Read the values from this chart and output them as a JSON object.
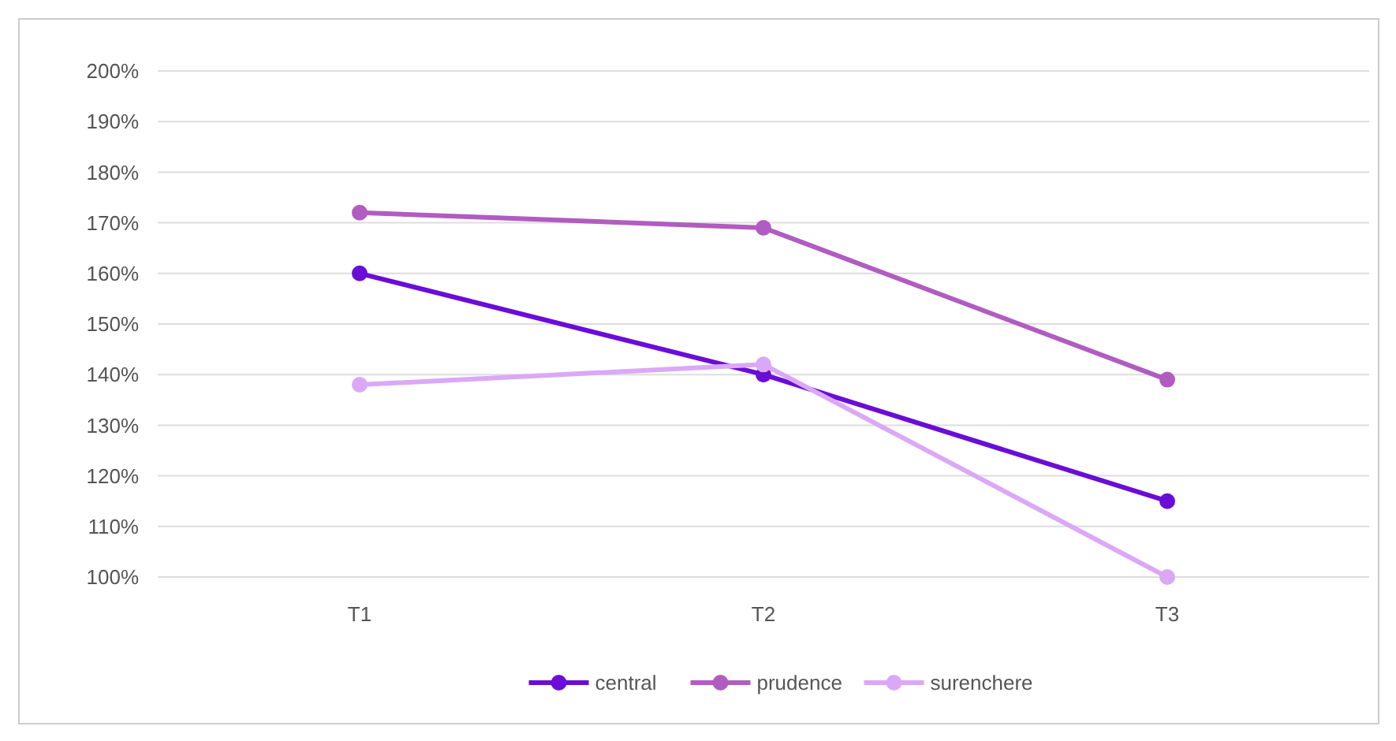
{
  "chart_data": {
    "type": "line",
    "categories": [
      "T1",
      "T2",
      "T3"
    ],
    "series": [
      {
        "name": "central",
        "color": "#6a0dd6",
        "values": [
          160,
          140,
          115
        ]
      },
      {
        "name": "prudence",
        "color": "#b15cc0",
        "values": [
          172,
          169,
          139
        ]
      },
      {
        "name": "surenchere",
        "color": "#dba8f7",
        "values": [
          138,
          142,
          100
        ]
      }
    ],
    "ylim": [
      100,
      200
    ],
    "yticks": [
      {
        "value": 100,
        "label": "100%"
      },
      {
        "value": 110,
        "label": "110%"
      },
      {
        "value": 120,
        "label": "120%"
      },
      {
        "value": 130,
        "label": "130%"
      },
      {
        "value": 140,
        "label": "140%"
      },
      {
        "value": 150,
        "label": "150%"
      },
      {
        "value": 160,
        "label": "160%"
      },
      {
        "value": 170,
        "label": "170%"
      },
      {
        "value": 180,
        "label": "180%"
      },
      {
        "value": 190,
        "label": "190%"
      },
      {
        "value": 200,
        "label": "200%"
      }
    ],
    "grid": "y",
    "legend": "bottom",
    "marker": "circle",
    "line_style": "solid"
  }
}
